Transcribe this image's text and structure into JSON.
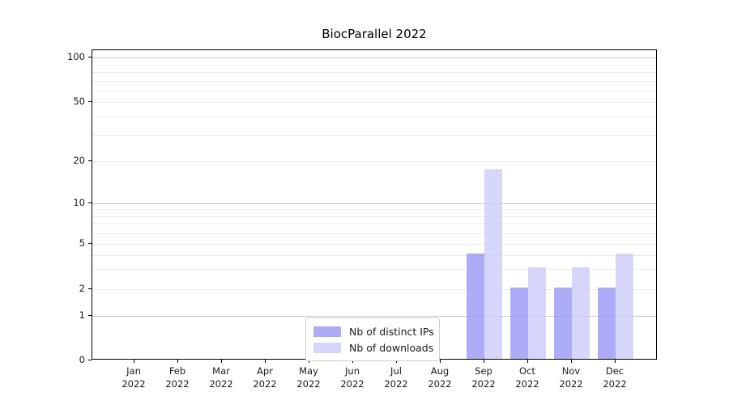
{
  "chart_data": {
    "type": "bar",
    "title": "BiocParallel 2022",
    "categories": [
      "Jan",
      "Feb",
      "Mar",
      "Apr",
      "May",
      "Jun",
      "Jul",
      "Aug",
      "Sep",
      "Oct",
      "Nov",
      "Dec"
    ],
    "category_year_line": "2022",
    "series": [
      {
        "name": "Nb of distinct IPs",
        "color": "#9999f5",
        "values": [
          0,
          0,
          0,
          0,
          0,
          0,
          0,
          0,
          4,
          2,
          2,
          2
        ]
      },
      {
        "name": "Nb of downloads",
        "color": "#ccccfa",
        "values": [
          0,
          0,
          0,
          0,
          0,
          0,
          0,
          0,
          17,
          3,
          3,
          4
        ]
      }
    ],
    "y_axis": {
      "ticks": [
        0,
        1,
        2,
        5,
        10,
        20,
        50,
        100
      ],
      "scale": "symlog",
      "max": 100
    },
    "grid": {
      "orientation": "horizontal",
      "major_at": [
        1,
        10,
        100
      ],
      "minor_at": [
        2,
        3,
        4,
        5,
        6,
        7,
        8,
        9,
        20,
        30,
        40,
        50,
        60,
        70,
        80,
        90
      ],
      "major_color": "#c9c9c9",
      "minor_color": "#ececec"
    },
    "legend": {
      "position": "lower center",
      "entries": [
        "Nb of distinct IPs",
        "Nb of downloads"
      ]
    }
  }
}
